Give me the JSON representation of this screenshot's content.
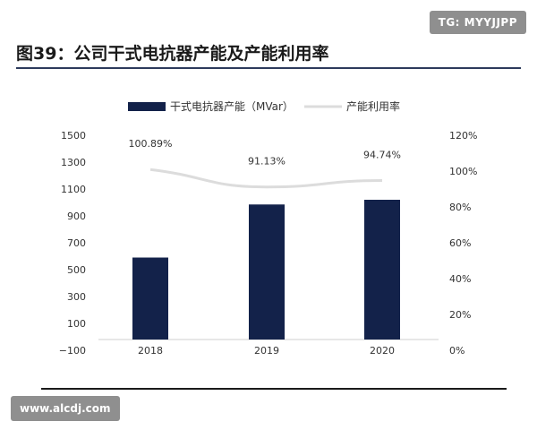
{
  "watermarks": {
    "top": "TG: MYYJJPP",
    "bottom": "www.alcdj.com"
  },
  "page_title": "图39：公司干式电抗器产能及产能利用率",
  "colors": {
    "bar": "#13224a",
    "line": "#dcdcdc",
    "text": "#333333"
  },
  "chart_data": {
    "type": "bar",
    "title": "",
    "categories": [
      "2018",
      "2019",
      "2020"
    ],
    "series": [
      {
        "name": "干式电抗器产能（MVar）",
        "type": "bar",
        "axis": "left",
        "values": [
          590,
          985,
          1020
        ]
      },
      {
        "name": "产能利用率",
        "type": "line",
        "axis": "right",
        "values": [
          100.89,
          91.13,
          94.74
        ],
        "labels": [
          "100.89%",
          "91.13%",
          "94.74%"
        ]
      }
    ],
    "left_axis": {
      "ylim": [
        -100,
        1500
      ],
      "ticks": [
        -100,
        100,
        300,
        500,
        700,
        900,
        1100,
        1300,
        1500
      ],
      "tick_labels": [
        "−100",
        "100",
        "300",
        "500",
        "700",
        "900",
        "1100",
        "1300",
        "1500"
      ]
    },
    "right_axis": {
      "ylim": [
        0,
        120
      ],
      "ticks": [
        0,
        20,
        40,
        60,
        80,
        100,
        120
      ],
      "tick_labels": [
        "0%",
        "20%",
        "40%",
        "60%",
        "80%",
        "100%",
        "120%"
      ]
    },
    "legend_position": "top"
  }
}
